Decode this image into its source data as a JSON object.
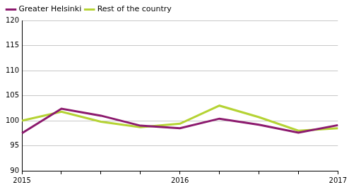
{
  "chart_data": {
    "type": "line",
    "categories": [
      "2015",
      null,
      null,
      null,
      "2016",
      null,
      null,
      null,
      "2017"
    ],
    "series": [
      {
        "name": "Greater Helsinki",
        "color": "#8c1a6e",
        "values": [
          97.5,
          102.4,
          101.0,
          99.0,
          98.5,
          100.4,
          99.2,
          97.6,
          99.1
        ]
      },
      {
        "name": "Rest of the country",
        "color": "#b5d334",
        "values": [
          100.0,
          101.8,
          99.8,
          98.7,
          99.4,
          103.0,
          100.7,
          98.0,
          98.5
        ]
      }
    ],
    "ylim": [
      90,
      120
    ],
    "yticks": [
      90,
      95,
      100,
      105,
      110,
      115,
      120
    ],
    "grid": true,
    "legend": "upper left"
  }
}
